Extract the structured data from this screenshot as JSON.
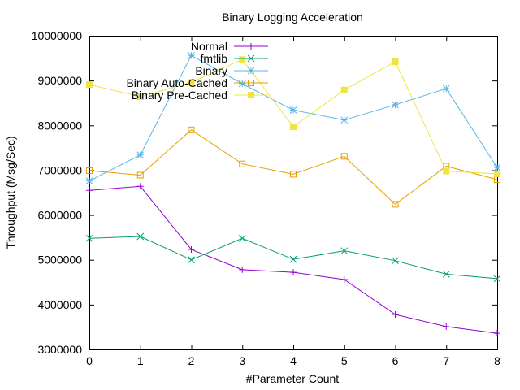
{
  "chart_data": {
    "type": "line",
    "title": "Binary Logging Acceleration",
    "xlabel": "#Parameter Count",
    "ylabel": "Throughput (Msg/Sec)",
    "xlim": [
      0,
      8
    ],
    "ylim": [
      3000000,
      10000000
    ],
    "x": [
      0,
      1,
      2,
      3,
      4,
      5,
      6,
      7,
      8
    ],
    "x_ticks": [
      "0",
      "1",
      "2",
      "3",
      "4",
      "5",
      "6",
      "7",
      "8"
    ],
    "y_ticks": [
      "3000000",
      "4000000",
      "5000000",
      "6000000",
      "7000000",
      "8000000",
      "9000000",
      "10000000"
    ],
    "y_tick_values": [
      3000000,
      4000000,
      5000000,
      6000000,
      7000000,
      8000000,
      9000000,
      10000000
    ],
    "grid": false,
    "legend_position": "top-center",
    "series": [
      {
        "name": "Normal",
        "color": "#9400d3",
        "marker": "plus",
        "values": [
          6550000,
          6640000,
          5230000,
          4780000,
          4720000,
          4560000,
          3780000,
          3510000,
          3360000
        ]
      },
      {
        "name": "fmtlib",
        "color": "#009e73",
        "marker": "cross",
        "values": [
          5480000,
          5520000,
          5000000,
          5480000,
          5010000,
          5200000,
          4980000,
          4680000,
          4580000
        ]
      },
      {
        "name": "Binary",
        "color": "#56b4e9",
        "marker": "star",
        "values": [
          6760000,
          7340000,
          9560000,
          8930000,
          8340000,
          8120000,
          8460000,
          8820000,
          7060000
        ]
      },
      {
        "name": "Binary Auto-Cached",
        "color": "#e69f00",
        "marker": "square-open",
        "values": [
          6990000,
          6890000,
          7900000,
          7140000,
          6910000,
          7310000,
          6240000,
          7090000,
          6790000
        ]
      },
      {
        "name": "Binary Pre-Cached",
        "color": "#f0e442",
        "marker": "square-filled",
        "values": [
          8910000,
          8640000,
          8960000,
          9470000,
          7970000,
          8790000,
          9420000,
          6980000,
          6920000
        ]
      }
    ]
  }
}
